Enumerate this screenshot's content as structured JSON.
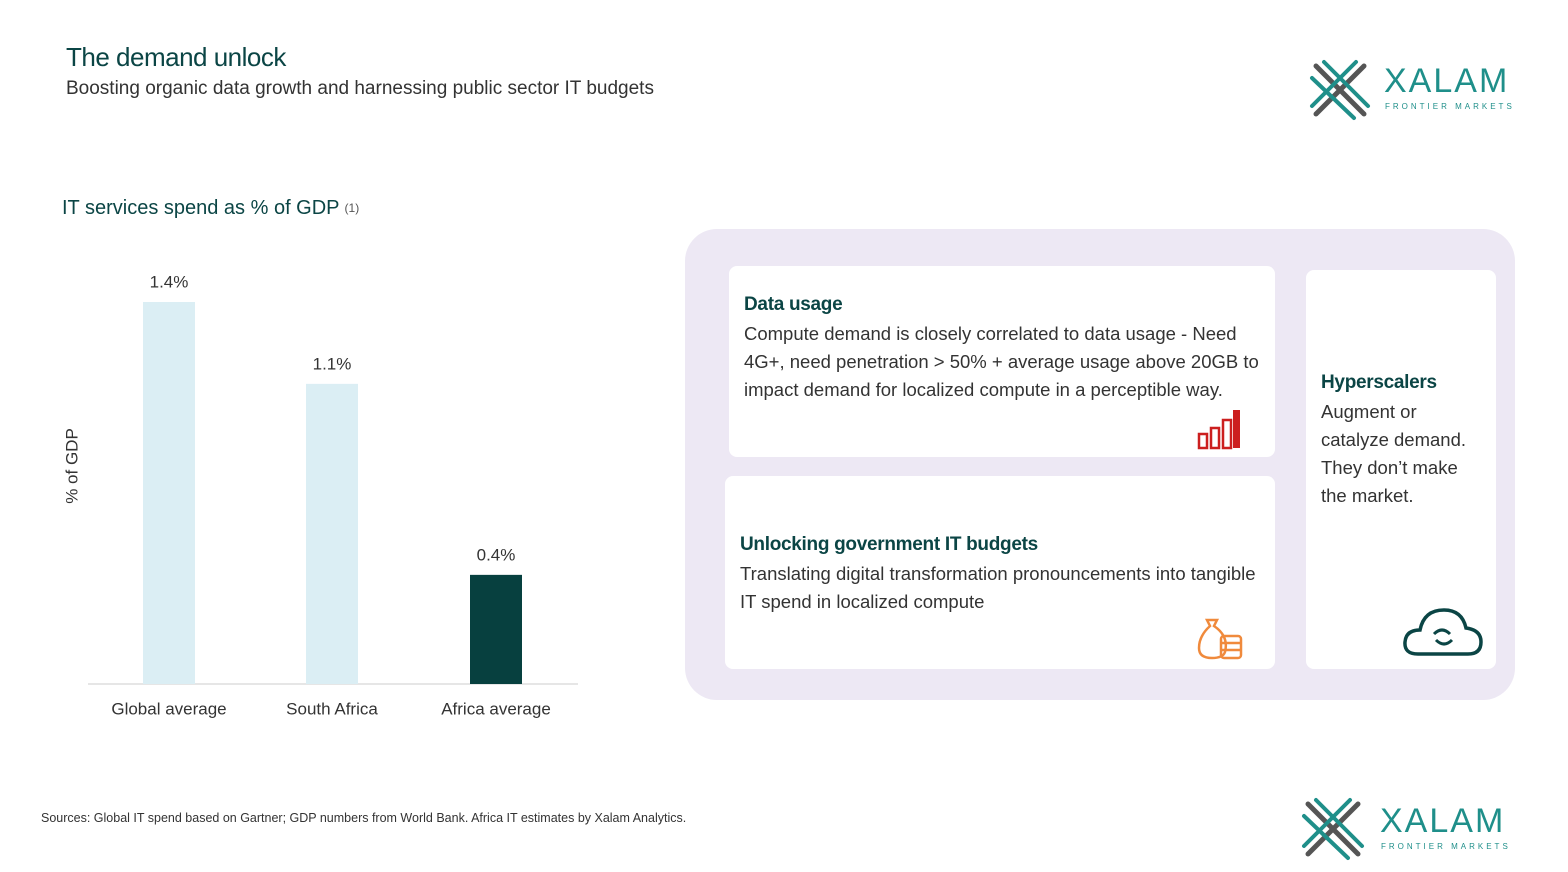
{
  "header": {
    "title": "The demand unlock",
    "subtitle": "Boosting organic data growth and harnessing public sector IT budgets"
  },
  "logo": {
    "name": "XALAM",
    "tagline": "FRONTIER MARKETS"
  },
  "chart_data": {
    "type": "bar",
    "title": "IT services spend as % of GDP",
    "title_note": "(1)",
    "y_label": "% of GDP",
    "categories": [
      "Global average",
      "South Africa",
      "Africa average"
    ],
    "values": [
      1.4,
      1.1,
      0.4
    ],
    "value_labels": [
      "1.4%",
      "1.1%",
      "0.4%"
    ],
    "colors": [
      "#dbeef4",
      "#dbeef4",
      "#07403f"
    ],
    "ylim": [
      0,
      1.4
    ]
  },
  "cards": [
    {
      "title": "Data usage",
      "body": "Compute demand is closely correlated to data usage - Need 4G+, need penetration > 50% + average usage above 20GB to impact demand for localized compute in a perceptible way."
    },
    {
      "title": "Unlocking government IT budgets",
      "body": "Translating digital transformation pronouncements into tangible IT spend in localized compute"
    },
    {
      "title": "Hyperscalers",
      "body": "Augment or catalyze demand. They don’t make the market."
    }
  ],
  "footer": {
    "sources": "Sources: Global IT spend based on Gartner; GDP numbers from World Bank. Africa IT estimates by Xalam Analytics."
  }
}
